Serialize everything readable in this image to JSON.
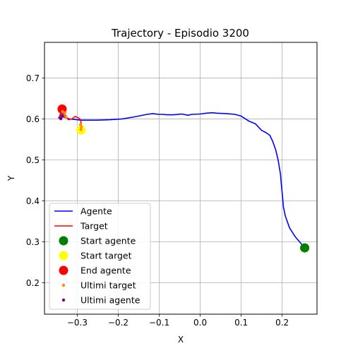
{
  "chart_data": {
    "type": "line",
    "title": "Trajectory - Episodio 3200",
    "xlabel": "X",
    "ylabel": "Y",
    "xlim": [
      -0.38,
      0.285
    ],
    "ylim": [
      0.123,
      0.787
    ],
    "xticks": [
      -0.3,
      -0.2,
      -0.1,
      0.0,
      0.1,
      0.2
    ],
    "xtick_labels": [
      "−0.3",
      "−0.2",
      "−0.1",
      "0.0",
      "0.1",
      "0.2"
    ],
    "yticks": [
      0.2,
      0.3,
      0.4,
      0.5,
      0.6,
      0.7
    ],
    "ytick_labels": [
      "0.2",
      "0.3",
      "0.4",
      "0.5",
      "0.6",
      "0.7"
    ],
    "grid": true,
    "legend_position": "lower-left",
    "series": [
      {
        "name": "Agente",
        "kind": "line",
        "color": "#0000ff",
        "points": [
          [
            0.255,
            0.285
          ],
          [
            0.232,
            0.312
          ],
          [
            0.218,
            0.334
          ],
          [
            0.208,
            0.362
          ],
          [
            0.203,
            0.385
          ],
          [
            0.201,
            0.41
          ],
          [
            0.198,
            0.44
          ],
          [
            0.196,
            0.465
          ],
          [
            0.19,
            0.5
          ],
          [
            0.184,
            0.525
          ],
          [
            0.177,
            0.545
          ],
          [
            0.17,
            0.56
          ],
          [
            0.16,
            0.567
          ],
          [
            0.15,
            0.572
          ],
          [
            0.135,
            0.588
          ],
          [
            0.12,
            0.594
          ],
          [
            0.1,
            0.607
          ],
          [
            0.085,
            0.611
          ],
          [
            0.065,
            0.613
          ],
          [
            0.04,
            0.614
          ],
          [
            0.03,
            0.615
          ],
          [
            0.015,
            0.614
          ],
          [
            0.0,
            0.612
          ],
          [
            -0.02,
            0.611
          ],
          [
            -0.03,
            0.609
          ],
          [
            -0.045,
            0.612
          ],
          [
            -0.065,
            0.61
          ],
          [
            -0.08,
            0.61
          ],
          [
            -0.092,
            0.611
          ],
          [
            -0.102,
            0.611
          ],
          [
            -0.115,
            0.613
          ],
          [
            -0.13,
            0.611
          ],
          [
            -0.16,
            0.605
          ],
          [
            -0.19,
            0.6
          ],
          [
            -0.22,
            0.598
          ],
          [
            -0.25,
            0.597
          ],
          [
            -0.29,
            0.597
          ],
          [
            -0.32,
            0.6
          ],
          [
            -0.33,
            0.604
          ],
          [
            -0.338,
            0.605
          ],
          [
            -0.34,
            0.609
          ],
          [
            -0.342,
            0.611
          ],
          [
            -0.338,
            0.616
          ],
          [
            -0.337,
            0.624
          ]
        ]
      },
      {
        "name": "Target",
        "kind": "line",
        "color": "#ff0000",
        "points": [
          [
            -0.291,
            0.573
          ],
          [
            -0.29,
            0.585
          ],
          [
            -0.292,
            0.598
          ],
          [
            -0.296,
            0.602
          ],
          [
            -0.305,
            0.606
          ],
          [
            -0.313,
            0.6
          ],
          [
            -0.322,
            0.598
          ],
          [
            -0.327,
            0.606
          ],
          [
            -0.33,
            0.61
          ],
          [
            -0.336,
            0.618
          ],
          [
            -0.34,
            0.612
          ],
          [
            -0.343,
            0.608
          ],
          [
            -0.336,
            0.62
          ]
        ]
      },
      {
        "name": "Start agente",
        "kind": "marker",
        "color": "#008000",
        "points": [
          [
            0.255,
            0.285
          ]
        ]
      },
      {
        "name": "Start target",
        "kind": "marker",
        "color": "#ffff00",
        "points": [
          [
            -0.291,
            0.573
          ]
        ]
      },
      {
        "name": "End agente",
        "kind": "marker",
        "color": "#ff0000",
        "points": [
          [
            -0.337,
            0.624
          ]
        ]
      },
      {
        "name": "Ultimi target",
        "kind": "dots",
        "color": "#ff8c00",
        "points": [
          [
            -0.291,
            0.574
          ],
          [
            -0.29,
            0.58
          ],
          [
            -0.292,
            0.586
          ],
          [
            -0.33,
            0.615
          ],
          [
            -0.333,
            0.609
          ],
          [
            -0.336,
            0.618
          ],
          [
            -0.327,
            0.604
          ]
        ]
      },
      {
        "name": "Ultimi agente",
        "kind": "dots",
        "color": "#800080",
        "points": [
          [
            -0.338,
            0.605
          ],
          [
            -0.34,
            0.6
          ],
          [
            -0.343,
            0.603
          ],
          [
            -0.336,
            0.609
          ]
        ]
      }
    ]
  }
}
